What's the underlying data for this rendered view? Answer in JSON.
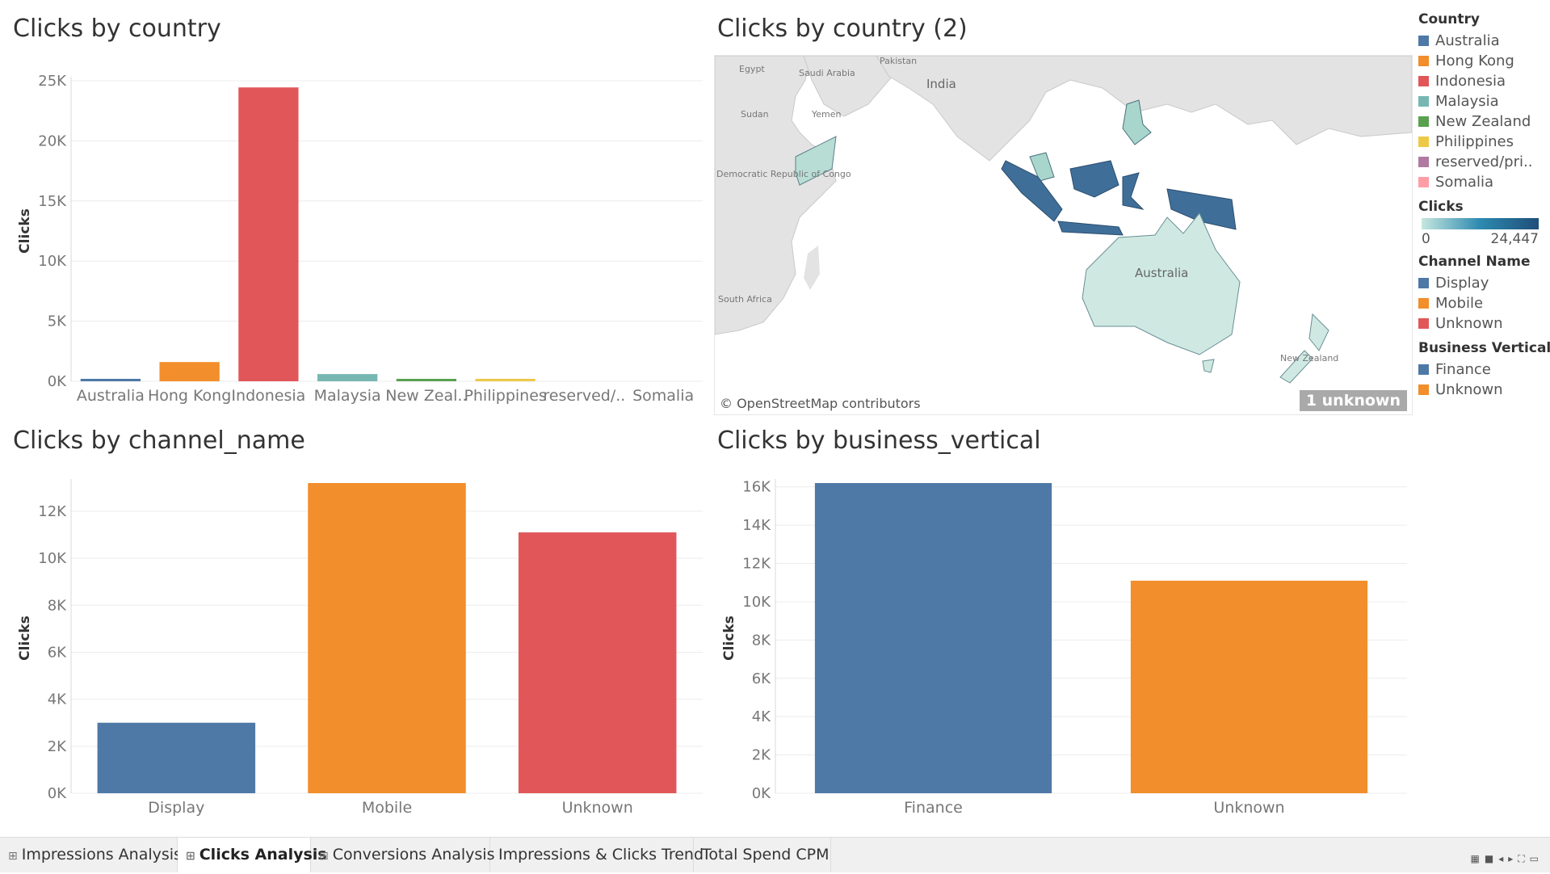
{
  "panels": {
    "country": {
      "title": "Clicks by country"
    },
    "map": {
      "title": "Clicks by country (2)",
      "credit": "© OpenStreetMap contributors",
      "unknown_badge": "1 unknown",
      "labels": [
        "Egypt",
        "Saudi Arabia",
        "Pakistan",
        "India",
        "Sudan",
        "Yemen",
        "Democratic Republic of Congo",
        "South Africa",
        "Australia",
        "New Zealand"
      ]
    },
    "channel": {
      "title": "Clicks by channel_name"
    },
    "vertical": {
      "title": "Clicks by business_vertical"
    }
  },
  "chart_data": [
    {
      "type": "bar",
      "title": "Clicks by country",
      "ylabel": "Clicks",
      "categories": [
        "Australia",
        "Hong Kong",
        "Indonesia",
        "Malaysia",
        "New Zeal..",
        "Philippines",
        "reserved/..",
        "Somalia"
      ],
      "values": [
        150,
        1600,
        24447,
        600,
        200,
        180,
        0,
        0
      ],
      "colors": [
        "#4e79a7",
        "#f28e2b",
        "#e15759",
        "#76b7b2",
        "#59a14f",
        "#edc948",
        "#b07aa1",
        "#ff9da7"
      ],
      "ylim": [
        0,
        25000
      ],
      "ticks": [
        0,
        5000,
        10000,
        15000,
        20000,
        25000
      ],
      "tick_labels": [
        "0K",
        "5K",
        "10K",
        "15K",
        "20K",
        "25K"
      ]
    },
    {
      "type": "bar",
      "title": "Clicks by channel_name",
      "ylabel": "Clicks",
      "categories": [
        "Display",
        "Mobile",
        "Unknown"
      ],
      "values": [
        3000,
        13200,
        11100
      ],
      "colors": [
        "#4e79a7",
        "#f28e2b",
        "#e15759"
      ],
      "ylim": [
        0,
        13200
      ],
      "ticks": [
        0,
        2000,
        4000,
        6000,
        8000,
        10000,
        12000
      ],
      "tick_labels": [
        "0K",
        "2K",
        "4K",
        "6K",
        "8K",
        "10K",
        "12K"
      ]
    },
    {
      "type": "bar",
      "title": "Clicks by business_vertical",
      "ylabel": "Clicks",
      "categories": [
        "Finance",
        "Unknown"
      ],
      "values": [
        16200,
        11100
      ],
      "colors": [
        "#4e79a7",
        "#f28e2b"
      ],
      "ylim": [
        0,
        16200
      ],
      "ticks": [
        0,
        2000,
        4000,
        6000,
        8000,
        10000,
        12000,
        14000,
        16000
      ],
      "tick_labels": [
        "0K",
        "2K",
        "4K",
        "6K",
        "8K",
        "10K",
        "12K",
        "14K",
        "16K"
      ]
    }
  ],
  "legend": {
    "country": {
      "title": "Country",
      "items": [
        {
          "label": "Australia",
          "color": "#4e79a7"
        },
        {
          "label": "Hong Kong",
          "color": "#f28e2b"
        },
        {
          "label": "Indonesia",
          "color": "#e15759"
        },
        {
          "label": "Malaysia",
          "color": "#76b7b2"
        },
        {
          "label": "New Zealand",
          "color": "#59a14f"
        },
        {
          "label": "Philippines",
          "color": "#edc948"
        },
        {
          "label": "reserved/pri..",
          "color": "#b07aa1"
        },
        {
          "label": "Somalia",
          "color": "#ff9da7"
        }
      ]
    },
    "clicks": {
      "title": "Clicks",
      "min": "0",
      "max": "24,447"
    },
    "channel": {
      "title": "Channel Name",
      "items": [
        {
          "label": "Display",
          "color": "#4e79a7"
        },
        {
          "label": "Mobile",
          "color": "#f28e2b"
        },
        {
          "label": "Unknown",
          "color": "#e15759"
        }
      ]
    },
    "vertical": {
      "title": "Business Vertical",
      "items": [
        {
          "label": "Finance",
          "color": "#4e79a7"
        },
        {
          "label": "Unknown",
          "color": "#f28e2b"
        }
      ]
    }
  },
  "tabs": [
    {
      "label": "Impressions Analysis",
      "icon": "⊞",
      "active": false
    },
    {
      "label": "Clicks Analysis",
      "icon": "⊞",
      "active": true
    },
    {
      "label": "Conversions Analysis",
      "icon": "⊞",
      "active": false
    },
    {
      "label": "Impressions & Clicks Trend",
      "icon": "",
      "active": false
    },
    {
      "label": "Total Spend CPM",
      "icon": "",
      "active": false
    }
  ],
  "nav_icons": [
    "grid-view-icon",
    "list-view-icon",
    "prev-icon",
    "next-icon",
    "fullscreen-icon",
    "present-icon"
  ]
}
